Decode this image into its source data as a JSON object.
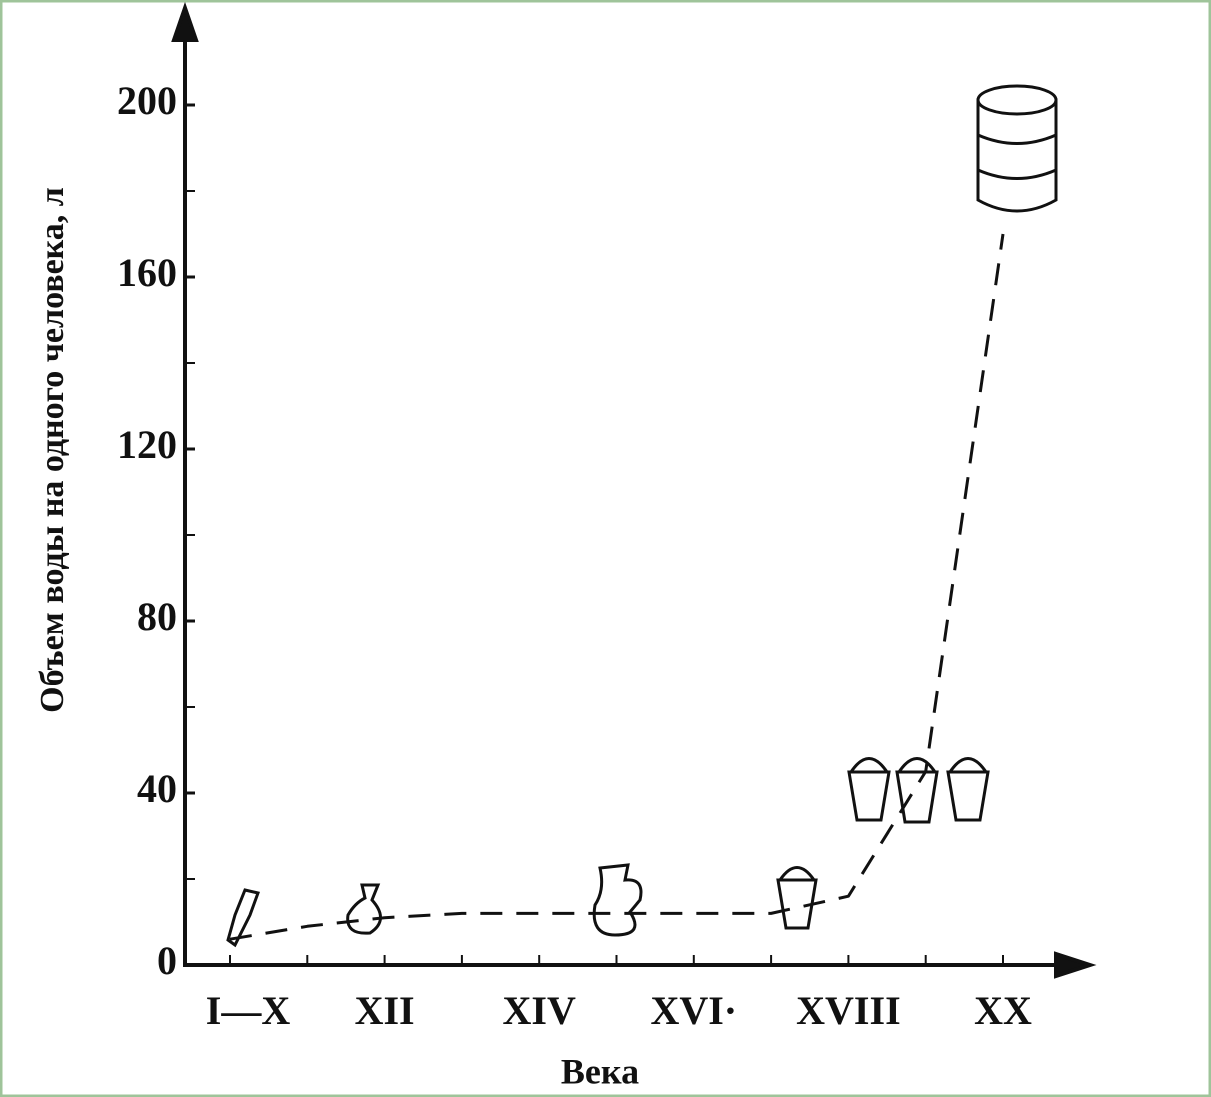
{
  "chart_data": {
    "type": "line",
    "x_label": "Века",
    "y_label": "Объем воды на одного человека, л",
    "categories": [
      "I—X",
      null,
      "XII",
      null,
      "XIV",
      null,
      "XVI·",
      null,
      "XVIII",
      null,
      "XX"
    ],
    "series": [
      {
        "color": "#111111",
        "values": [
          6,
          9,
          11,
          12,
          12,
          12,
          12,
          12,
          16,
          45,
          170
        ]
      }
    ],
    "ylim": [
      0,
      220
    ],
    "yticks": [
      0,
      40,
      80,
      120,
      160,
      200
    ],
    "minor_yticks": [
      20,
      60,
      100,
      140,
      180
    ],
    "dashed": true
  }
}
